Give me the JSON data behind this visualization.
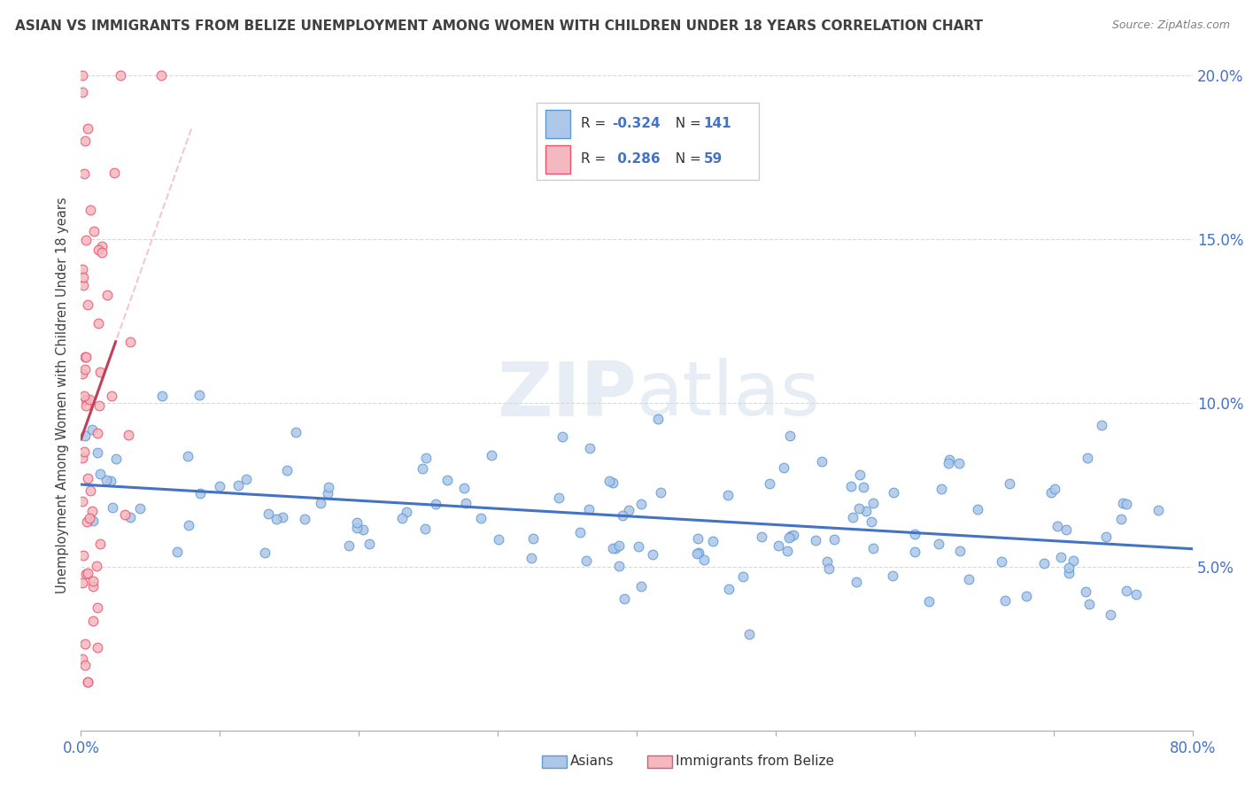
{
  "title": "ASIAN VS IMMIGRANTS FROM BELIZE UNEMPLOYMENT AMONG WOMEN WITH CHILDREN UNDER 18 YEARS CORRELATION CHART",
  "source": "Source: ZipAtlas.com",
  "ylabel": "Unemployment Among Women with Children Under 18 years",
  "xmin": 0.0,
  "xmax": 0.8,
  "ymin": 0.0,
  "ymax": 0.205,
  "yticks": [
    0.05,
    0.1,
    0.15,
    0.2
  ],
  "ytick_labels": [
    "5.0%",
    "10.0%",
    "15.0%",
    "20.0%"
  ],
  "watermark": "ZIPatlas",
  "asian_color": "#5b9bd5",
  "asian_face": "#aec6e8",
  "belize_color": "#e8546a",
  "belize_face": "#f4b8c1",
  "trendline_asian_color": "#4472c4",
  "trendline_belize_color": "#c0405a",
  "asian_R": -0.324,
  "asian_N": 141,
  "belize_R": 0.286,
  "belize_N": 59,
  "tick_color": "#4472c4",
  "grid_color": "#d9d9d9",
  "title_color": "#404040",
  "label_color": "#404040",
  "source_color": "#808080"
}
